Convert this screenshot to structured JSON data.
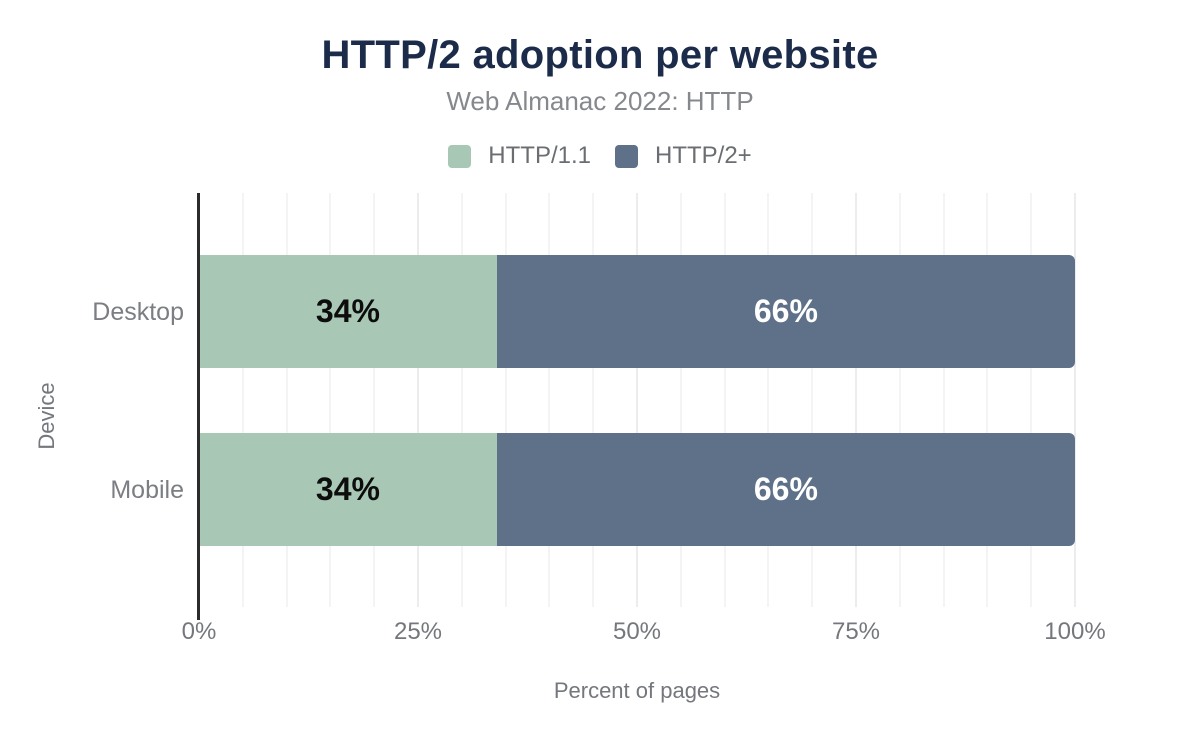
{
  "chart_data": {
    "type": "bar",
    "orientation": "horizontal",
    "stacked": true,
    "title": "HTTP/2 adoption per website",
    "subtitle": "Web Almanac 2022: HTTP",
    "xlabel": "Percent of pages",
    "ylabel": "Device",
    "categories": [
      "Desktop",
      "Mobile"
    ],
    "series": [
      {
        "name": "HTTP/1.1",
        "color": "#a8c7b4",
        "label_color": "#0d0d0d",
        "values": [
          34,
          34
        ],
        "labels": [
          "34%",
          "34%"
        ]
      },
      {
        "name": "HTTP/2+",
        "color": "#5f7189",
        "label_color": "#ffffff",
        "values": [
          66,
          66
        ],
        "labels": [
          "66%",
          "66%"
        ]
      }
    ],
    "x_ticks": [
      {
        "label": "0%",
        "value": 0
      },
      {
        "label": "25%",
        "value": 25
      },
      {
        "label": "50%",
        "value": 50
      },
      {
        "label": "75%",
        "value": 75
      },
      {
        "label": "100%",
        "value": 100
      }
    ],
    "xlim": [
      0,
      100
    ],
    "grid": {
      "minor_step": 5,
      "major_step": 25,
      "minor_color": "#f4f4f4",
      "major_color": "#ececec"
    },
    "legend_position": "top",
    "colors": {
      "background": "#ffffff",
      "title": "#1b2b49",
      "subtitle": "#85888d",
      "legend_text": "#6a6e73",
      "category_text": "#7b7e83",
      "tick_text": "#74777c",
      "axis_title_text": "#74777c",
      "axis_line": "#2b2b2b"
    }
  }
}
